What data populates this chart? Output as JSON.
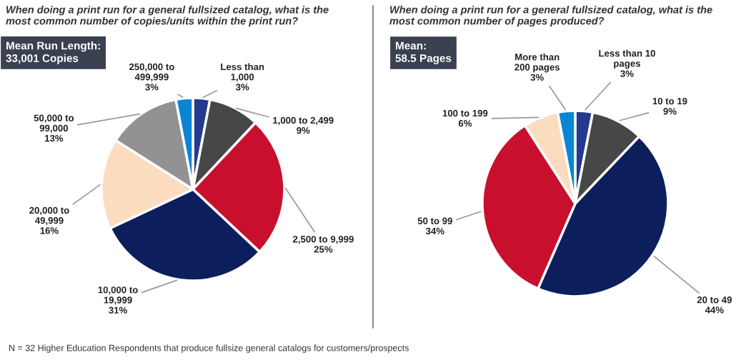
{
  "chart_data": [
    {
      "type": "pie",
      "title": "When doing a print run for a general fullsized catalog, what is the\nmost common number of copies/units within the print run?",
      "annotations": [
        "Mean Run Length:\n33,001 Copies",
        "N = 32 Higher Education Respondents that produce fullsize general catalogs for customers/prospects"
      ],
      "categories": [
        "Less than\n1,000",
        "1,000 to 2,499",
        "2,500 to 9,999",
        "10,000 to\n19,999",
        "20,000 to\n49,999",
        "50,000 to\n99,000",
        "250,000 to\n499,999"
      ],
      "values": [
        3,
        9,
        25,
        31,
        16,
        13,
        3
      ],
      "value_labels": [
        "3%",
        "9%",
        "25%",
        "31%",
        "16%",
        "13%",
        "3%"
      ],
      "colors": [
        "#233a8e",
        "#474747",
        "#c8102e",
        "#0c1f5c",
        "#fbdcbf",
        "#929292",
        "#0a85d1"
      ]
    },
    {
      "type": "pie",
      "title": "When doing a print run for a general fullsized catalog, what is the\nmost common number of pages produced?",
      "annotations": [
        "Mean:\n58.5 Pages"
      ],
      "categories": [
        "Less than 10\npages",
        "10 to 19",
        "20 to 49",
        "50 to 99",
        "100 to 199",
        "More than\n200 pages"
      ],
      "values": [
        3,
        9,
        44,
        34,
        6,
        3
      ],
      "value_labels": [
        "3%",
        "9%",
        "44%",
        "34%",
        "6%",
        "3%"
      ],
      "colors": [
        "#233a8e",
        "#474747",
        "#0c1f5c",
        "#c8102e",
        "#fbdcbf",
        "#0a85d1"
      ]
    }
  ]
}
